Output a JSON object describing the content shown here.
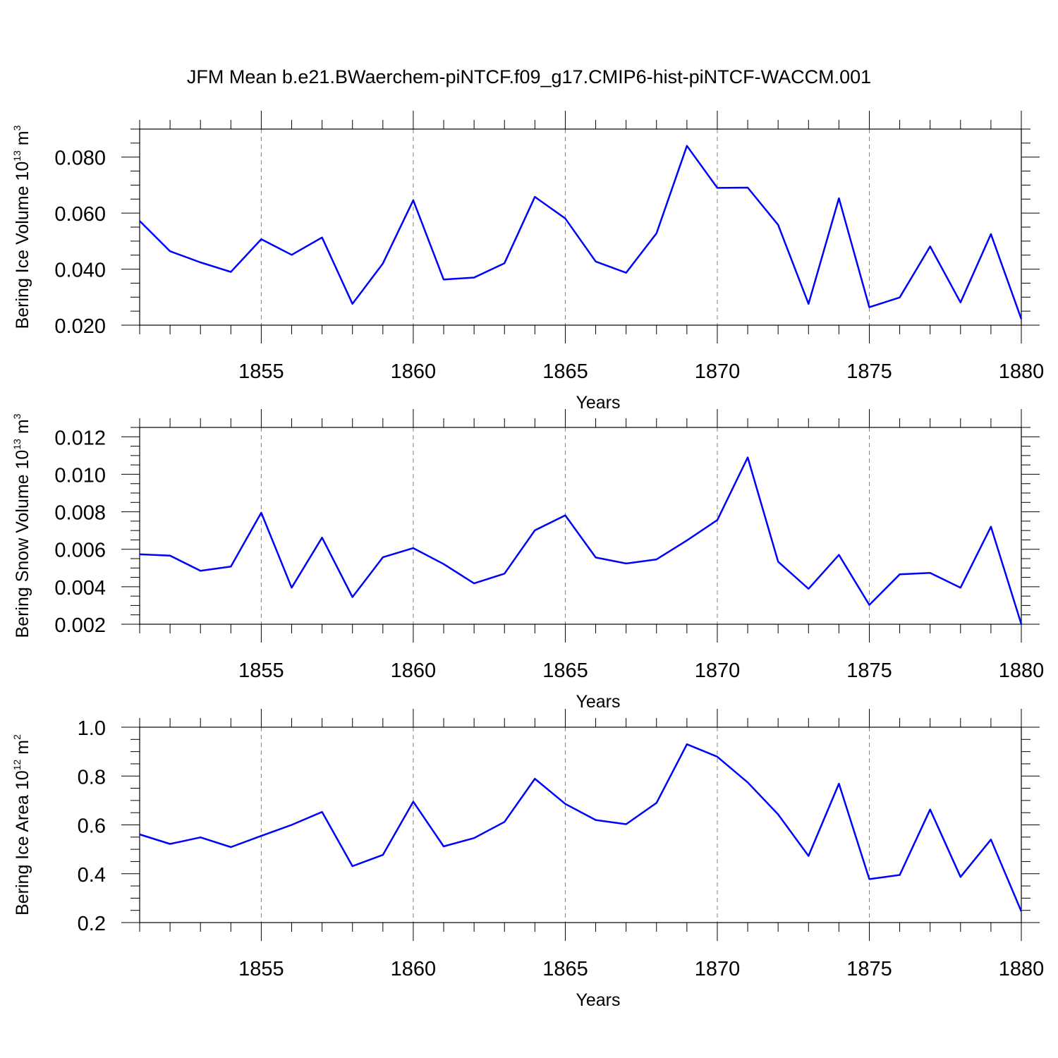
{
  "title": "JFM Mean b.e21.BWaerchem-piNTCF.f09_g17.CMIP6-hist-piNTCF-WACCM.001",
  "colors": {
    "line": "#0000ff",
    "axis": "#000000",
    "grid": "#808080",
    "background": "#ffffff"
  },
  "chart_data": [
    {
      "type": "line",
      "ylabel": {
        "text": "Bering Ice Volume 10",
        "exp": "13",
        "unit": " m",
        "unit_exp": "3"
      },
      "xlabel": "Years",
      "xlim": [
        1851,
        1880
      ],
      "ylim": [
        0.02,
        0.09
      ],
      "yticks": [
        0.02,
        0.04,
        0.06,
        0.08
      ],
      "ytick_labels": [
        "0.020",
        "0.040",
        "0.060",
        "0.080"
      ],
      "yminor_step": 0.005,
      "xticks": [
        1855,
        1860,
        1865,
        1870,
        1875,
        1880
      ],
      "xtick_labels": [
        "1855",
        "1860",
        "1865",
        "1870",
        "1875",
        "1880"
      ],
      "grid_x": [
        1855,
        1860,
        1865,
        1870,
        1875
      ],
      "series": [
        {
          "name": "Bering Ice Volume",
          "x": [
            1851,
            1852,
            1853,
            1854,
            1855,
            1856,
            1857,
            1858,
            1859,
            1860,
            1861,
            1862,
            1863,
            1864,
            1865,
            1866,
            1867,
            1868,
            1869,
            1870,
            1871,
            1872,
            1873,
            1874,
            1875,
            1876,
            1877,
            1878,
            1879,
            1880
          ],
          "values": [
            0.0572,
            0.0464,
            0.0424,
            0.039,
            0.0507,
            0.0451,
            0.0513,
            0.0276,
            0.042,
            0.0646,
            0.0363,
            0.037,
            0.0421,
            0.0658,
            0.0581,
            0.0427,
            0.0387,
            0.0528,
            0.084,
            0.069,
            0.0691,
            0.0558,
            0.0276,
            0.0653,
            0.0264,
            0.0299,
            0.0481,
            0.0281,
            0.0525,
            0.0222
          ]
        }
      ]
    },
    {
      "type": "line",
      "ylabel": {
        "text": "Bering Snow Volume 10",
        "exp": "13",
        "unit": " m",
        "unit_exp": "3"
      },
      "xlabel": "Years",
      "xlim": [
        1851,
        1880
      ],
      "ylim": [
        0.002,
        0.0125
      ],
      "yticks": [
        0.002,
        0.004,
        0.006,
        0.008,
        0.01,
        0.012
      ],
      "ytick_labels": [
        "0.002",
        "0.004",
        "0.006",
        "0.008",
        "0.010",
        "0.012"
      ],
      "yminor_step": 0.0005,
      "xticks": [
        1855,
        1860,
        1865,
        1870,
        1875,
        1880
      ],
      "xtick_labels": [
        "1855",
        "1860",
        "1865",
        "1870",
        "1875",
        "1880"
      ],
      "grid_x": [
        1855,
        1860,
        1865,
        1870,
        1875
      ],
      "series": [
        {
          "name": "Bering Snow Volume",
          "x": [
            1851,
            1852,
            1853,
            1854,
            1855,
            1856,
            1857,
            1858,
            1859,
            1860,
            1861,
            1862,
            1863,
            1864,
            1865,
            1866,
            1867,
            1868,
            1869,
            1870,
            1871,
            1872,
            1873,
            1874,
            1875,
            1876,
            1877,
            1878,
            1879,
            1880
          ],
          "values": [
            0.00573,
            0.00566,
            0.00485,
            0.00508,
            0.00795,
            0.00395,
            0.00662,
            0.00345,
            0.00557,
            0.00606,
            0.00521,
            0.00418,
            0.0047,
            0.00701,
            0.00781,
            0.00556,
            0.00524,
            0.00546,
            0.00647,
            0.00756,
            0.0109,
            0.00534,
            0.00389,
            0.0057,
            0.00303,
            0.00466,
            0.00474,
            0.00395,
            0.0072,
            0.002
          ]
        }
      ]
    },
    {
      "type": "line",
      "ylabel": {
        "text": "Bering Ice Area 10",
        "exp": "12",
        "unit": " m",
        "unit_exp": "2"
      },
      "xlabel": "Years",
      "xlim": [
        1851,
        1880
      ],
      "ylim": [
        0.2,
        1.0
      ],
      "yticks": [
        0.2,
        0.4,
        0.6,
        0.8,
        1.0
      ],
      "ytick_labels": [
        "0.2",
        "0.4",
        "0.6",
        "0.8",
        "1.0"
      ],
      "yminor_step": 0.05,
      "xticks": [
        1855,
        1860,
        1865,
        1870,
        1875,
        1880
      ],
      "xtick_labels": [
        "1855",
        "1860",
        "1865",
        "1870",
        "1875",
        "1880"
      ],
      "grid_x": [
        1855,
        1860,
        1865,
        1870,
        1875
      ],
      "series": [
        {
          "name": "Bering Ice Area",
          "x": [
            1851,
            1852,
            1853,
            1854,
            1855,
            1856,
            1857,
            1858,
            1859,
            1860,
            1861,
            1862,
            1863,
            1864,
            1865,
            1866,
            1867,
            1868,
            1869,
            1870,
            1871,
            1872,
            1873,
            1874,
            1875,
            1876,
            1877,
            1878,
            1879,
            1880
          ],
          "values": [
            0.561,
            0.522,
            0.549,
            0.509,
            0.555,
            0.6,
            0.653,
            0.431,
            0.477,
            0.695,
            0.512,
            0.546,
            0.612,
            0.789,
            0.686,
            0.62,
            0.603,
            0.69,
            0.93,
            0.879,
            0.774,
            0.643,
            0.473,
            0.769,
            0.378,
            0.395,
            0.663,
            0.387,
            0.54,
            0.246
          ]
        }
      ]
    }
  ]
}
